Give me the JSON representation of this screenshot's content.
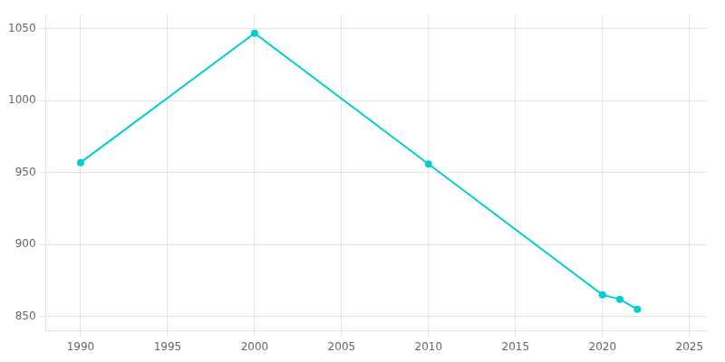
{
  "chart_data": {
    "type": "line",
    "x": [
      1990,
      2000,
      2010,
      2020,
      2021,
      2022
    ],
    "values": [
      957,
      1047,
      956,
      865,
      862,
      855
    ],
    "color": "#00CED1",
    "marker": "circle",
    "xlim": [
      1988,
      2026
    ],
    "ylim": [
      840,
      1060
    ],
    "xticks": [
      1990,
      1995,
      2000,
      2005,
      2010,
      2015,
      2020,
      2025
    ],
    "yticks": [
      850,
      900,
      950,
      1000,
      1050
    ],
    "grid": true
  }
}
